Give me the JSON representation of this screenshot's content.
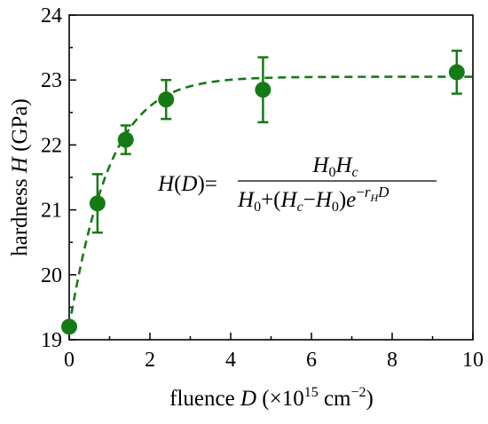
{
  "chart_data": {
    "type": "scatter",
    "xlabel": {
      "prefix": "fluence ",
      "var": "D",
      "pre_exp": " (×10",
      "exp": "15",
      "post_exp": " cm",
      "exp2": "−2",
      "close": ")"
    },
    "ylabel": {
      "prefix": "hardness ",
      "var": "H",
      "suffix": " (GPa)"
    },
    "xlim": [
      0,
      10
    ],
    "ylim": [
      19,
      24
    ],
    "xticks": [
      "0",
      "2",
      "4",
      "6",
      "8",
      "10"
    ],
    "yticks": [
      "19",
      "20",
      "21",
      "22",
      "23",
      "24"
    ],
    "grid": false,
    "legend": "none",
    "color": "#157a15",
    "series": [
      {
        "x": [
          0,
          0.7,
          1.4,
          2.4,
          4.8,
          9.6
        ],
        "y": [
          19.2,
          21.1,
          22.08,
          22.7,
          22.85,
          23.12
        ],
        "err": [
          0.0,
          0.45,
          0.22,
          0.3,
          0.5,
          0.33
        ]
      }
    ],
    "fit": {
      "style": "dashed",
      "H0": 19.2,
      "Hc": 23.05,
      "rH": 1.15
    },
    "equation": {
      "lhs_H": "H",
      "lhs_D": "D",
      "equals": "=",
      "num": "H0Hc",
      "den": "H0+(Hc−H0)e^(−rHD)"
    }
  }
}
